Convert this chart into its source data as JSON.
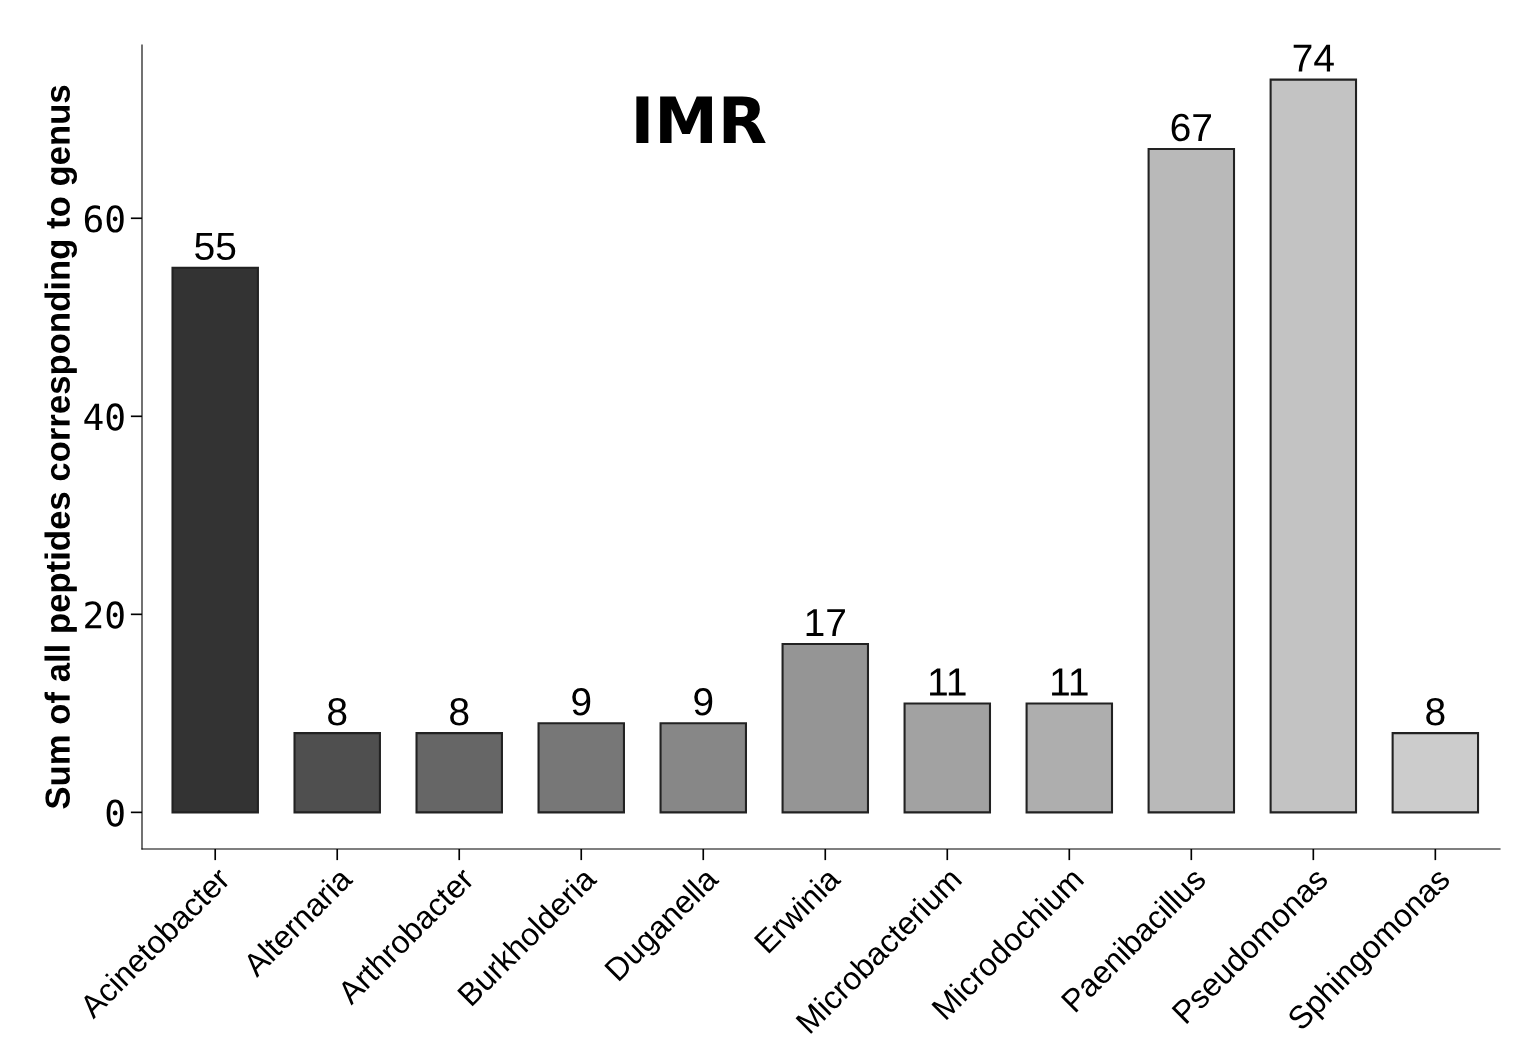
{
  "chart_data": {
    "type": "bar",
    "title": "IMR",
    "ylabel": "Sum of all peptides corresponding to genus",
    "categories": [
      "Acinetobacter",
      "Alternaria",
      "Arthrobacter",
      "Burkholderia",
      "Duganella",
      "Erwinia",
      "Microbacterium",
      "Microdochium",
      "Paenibacillus",
      "Pseudomonas",
      "Sphingomonas"
    ],
    "values": [
      55,
      8,
      8,
      9,
      9,
      17,
      11,
      11,
      67,
      74,
      8
    ],
    "colors": [
      "#333333",
      "#4f4f4f",
      "#666666",
      "#777777",
      "#878787",
      "#959595",
      "#a2a2a2",
      "#aeaeae",
      "#b9b9b9",
      "#c3c3c3",
      "#cccccc"
    ],
    "ylim": [
      -3.7,
      77.5
    ],
    "yticks": [
      0,
      20,
      40,
      60
    ],
    "grid": false,
    "data_labels": true,
    "legend": false
  }
}
